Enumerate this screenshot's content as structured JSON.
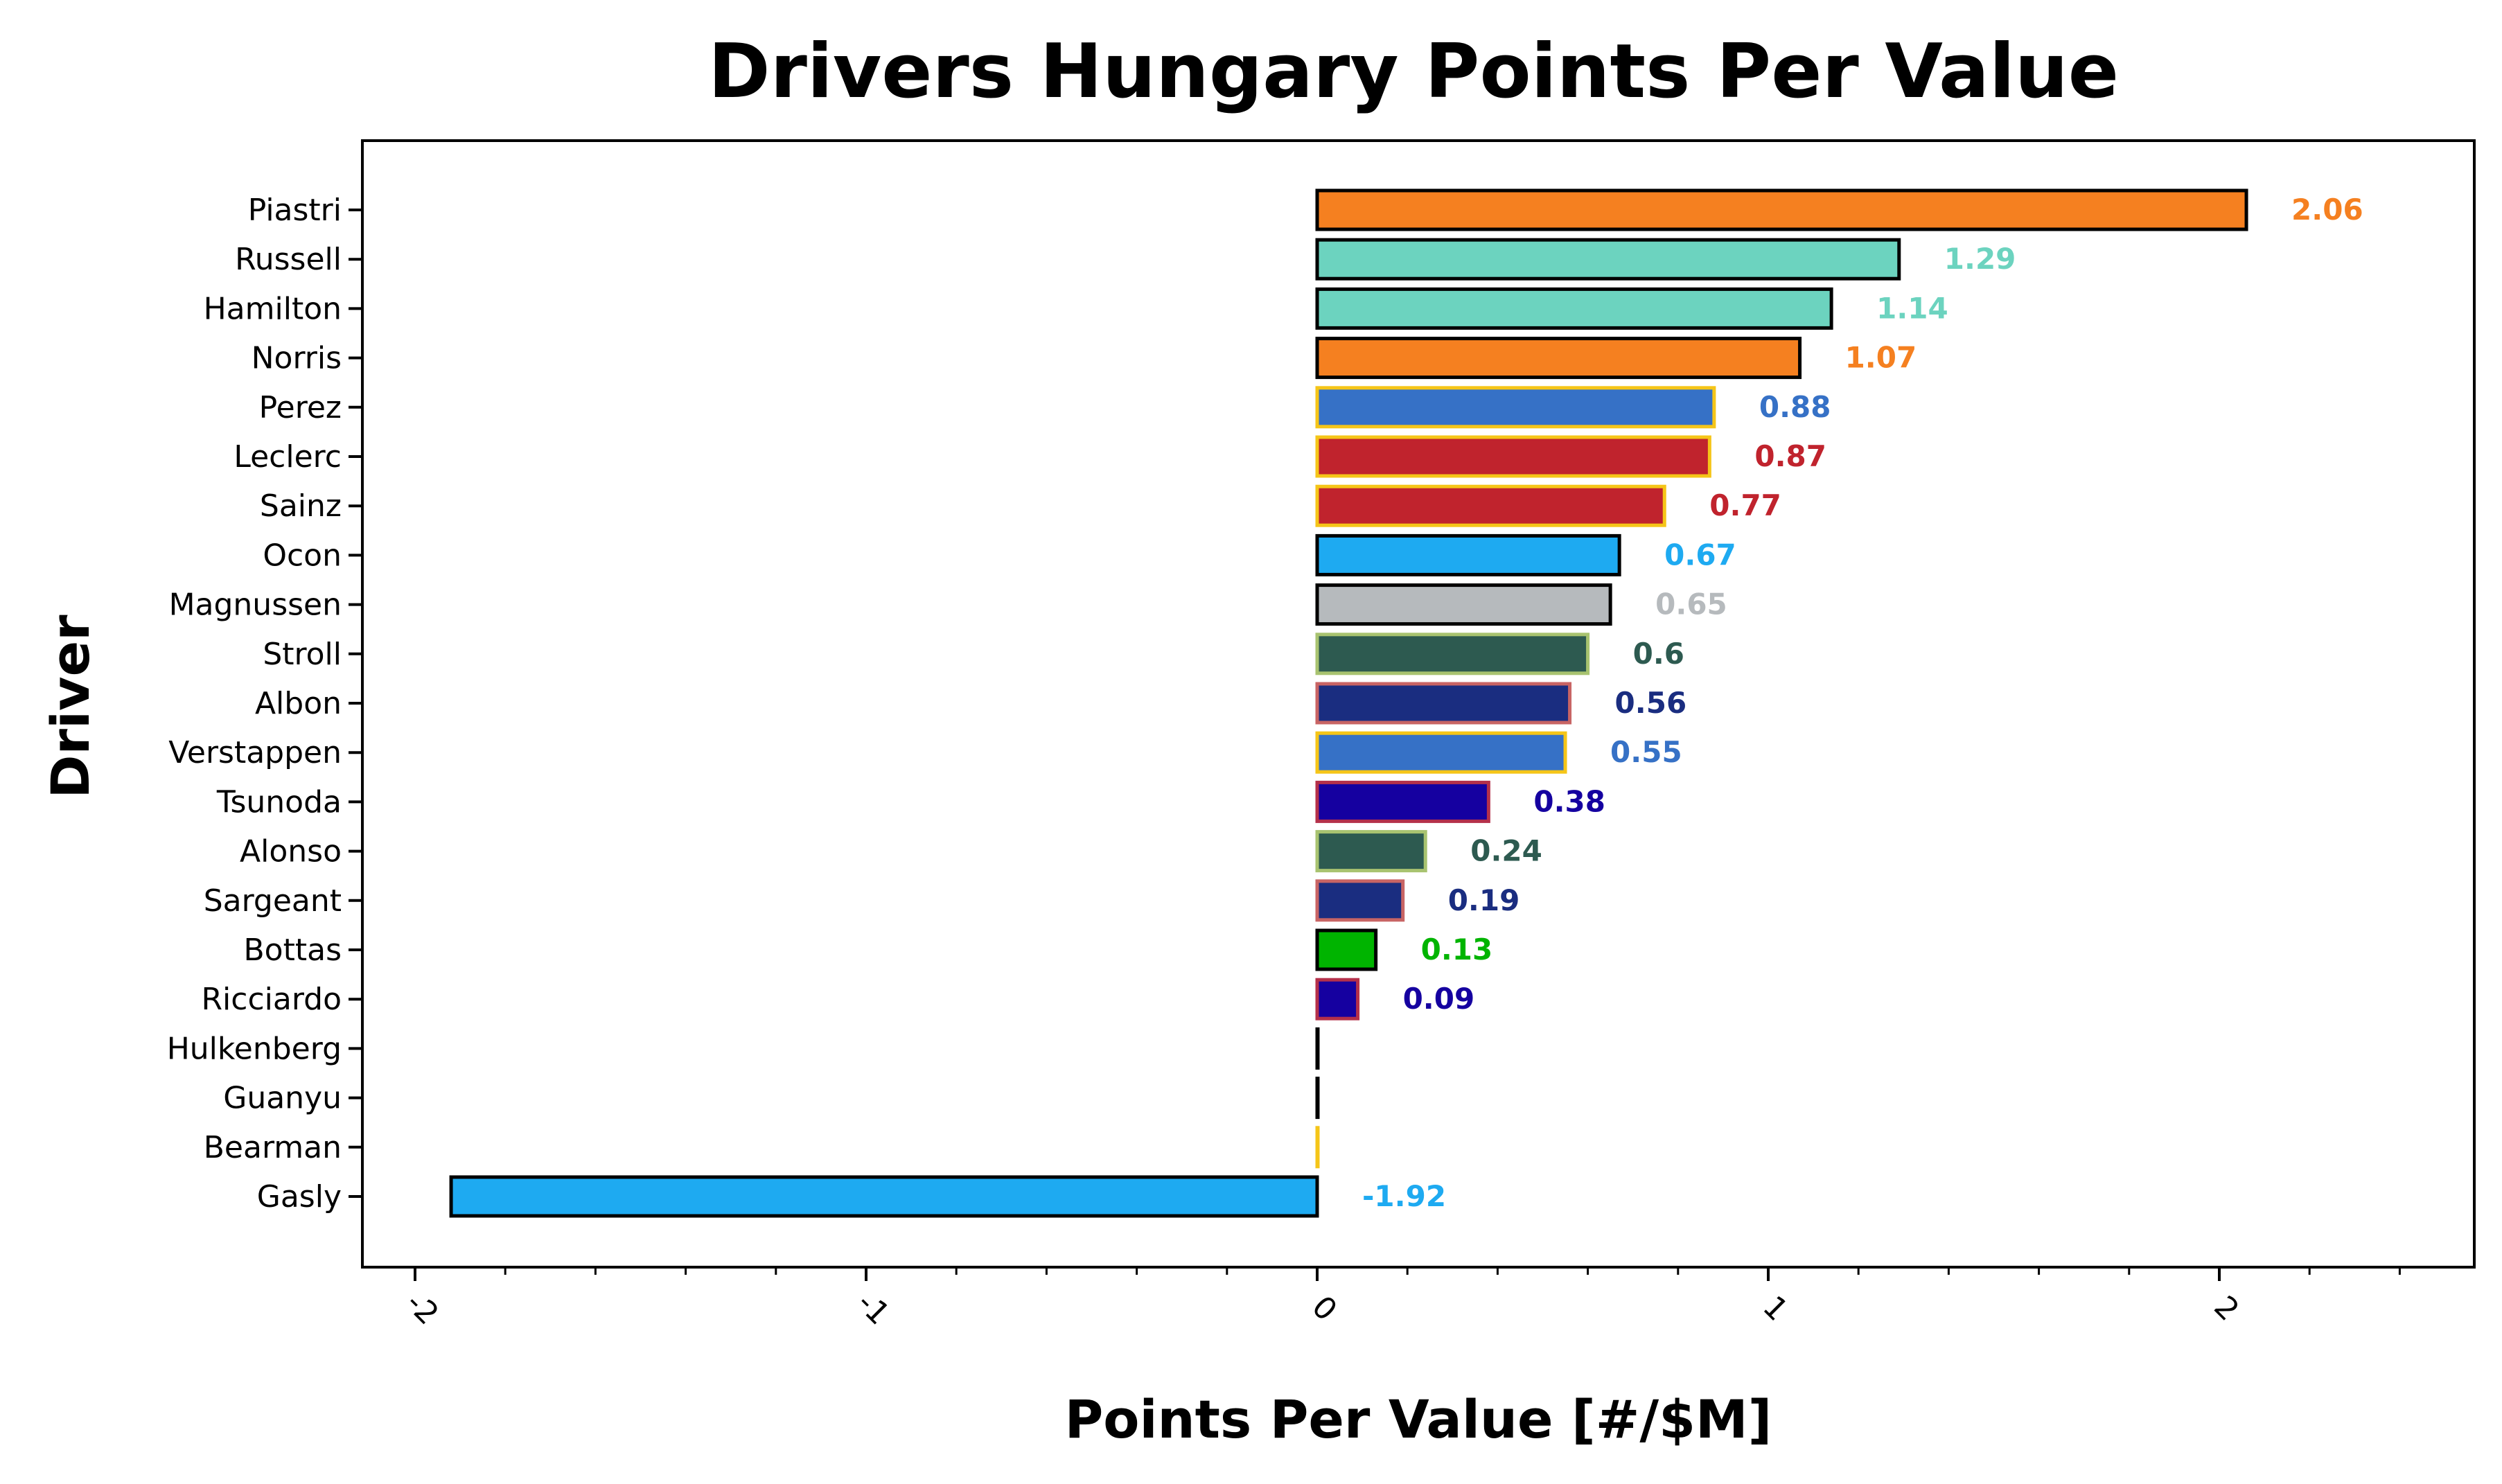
{
  "chart_data": {
    "type": "bar",
    "orientation": "horizontal",
    "title": "Drivers Hungary Points Per Value",
    "xlabel": "Points Per Value [#/$M]",
    "ylabel": "Driver",
    "xlim": [
      -2.1,
      2.55
    ],
    "xticks": [
      "-2",
      "-1",
      "0",
      "1",
      "2"
    ],
    "xtick_values": [
      -2,
      -1,
      0,
      1,
      2
    ],
    "grid": false,
    "legend": "none",
    "categories": [
      "Piastri",
      "Russell",
      "Hamilton",
      "Norris",
      "Perez",
      "Leclerc",
      "Sainz",
      "Ocon",
      "Magnussen",
      "Stroll",
      "Albon",
      "Verstappen",
      "Tsunoda",
      "Alonso",
      "Sargeant",
      "Bottas",
      "Ricciardo",
      "Hulkenberg",
      "Guanyu",
      "Bearman",
      "Gasly"
    ],
    "values": [
      2.06,
      1.29,
      1.14,
      1.07,
      0.88,
      0.87,
      0.77,
      0.67,
      0.65,
      0.6,
      0.56,
      0.55,
      0.38,
      0.24,
      0.19,
      0.13,
      0.09,
      0,
      0,
      0,
      -1.92
    ],
    "labels": [
      "2.06",
      "1.29",
      "1.14",
      "1.07",
      "0.88",
      "0.87",
      "0.77",
      "0.67",
      "0.65",
      "0.6",
      "0.56",
      "0.55",
      "0.38",
      "0.24",
      "0.19",
      "0.13",
      "0.09",
      "",
      "",
      "",
      "-1.92"
    ],
    "fill_colors": [
      "#F58020",
      "#6CD3BF",
      "#6CD3BF",
      "#F58020",
      "#3671C6",
      "#C0232D",
      "#C0232D",
      "#1EAAF1",
      "#B6BABD",
      "#2D5A50",
      "#1A2D80",
      "#3671C6",
      "#1500A0",
      "#2D5A50",
      "#1A2D80",
      "#00B400",
      "#1500A0",
      "#000000",
      "#000000",
      "#F5C518",
      "#1EAAF1"
    ],
    "edge_colors": [
      "#000000",
      "#000000",
      "#000000",
      "#000000",
      "#F5C518",
      "#F5C518",
      "#F5C518",
      "#000000",
      "#000000",
      "#A8C370",
      "#C86464",
      "#F5C518",
      "#B4304A",
      "#A8C370",
      "#C86464",
      "#000000",
      "#B4304A",
      "#000000",
      "#000000",
      "#F5C518",
      "#000000"
    ],
    "label_colors": [
      "#F58020",
      "#6CD3BF",
      "#6CD3BF",
      "#F58020",
      "#3671C6",
      "#C0232D",
      "#C0232D",
      "#1EAAF1",
      "#B6BABD",
      "#2D5A50",
      "#1A2D80",
      "#3671C6",
      "#1500A0",
      "#2D5A50",
      "#1A2D80",
      "#00B400",
      "#1500A0",
      "#000000",
      "#000000",
      "#000000",
      "#1EAAF1"
    ]
  }
}
